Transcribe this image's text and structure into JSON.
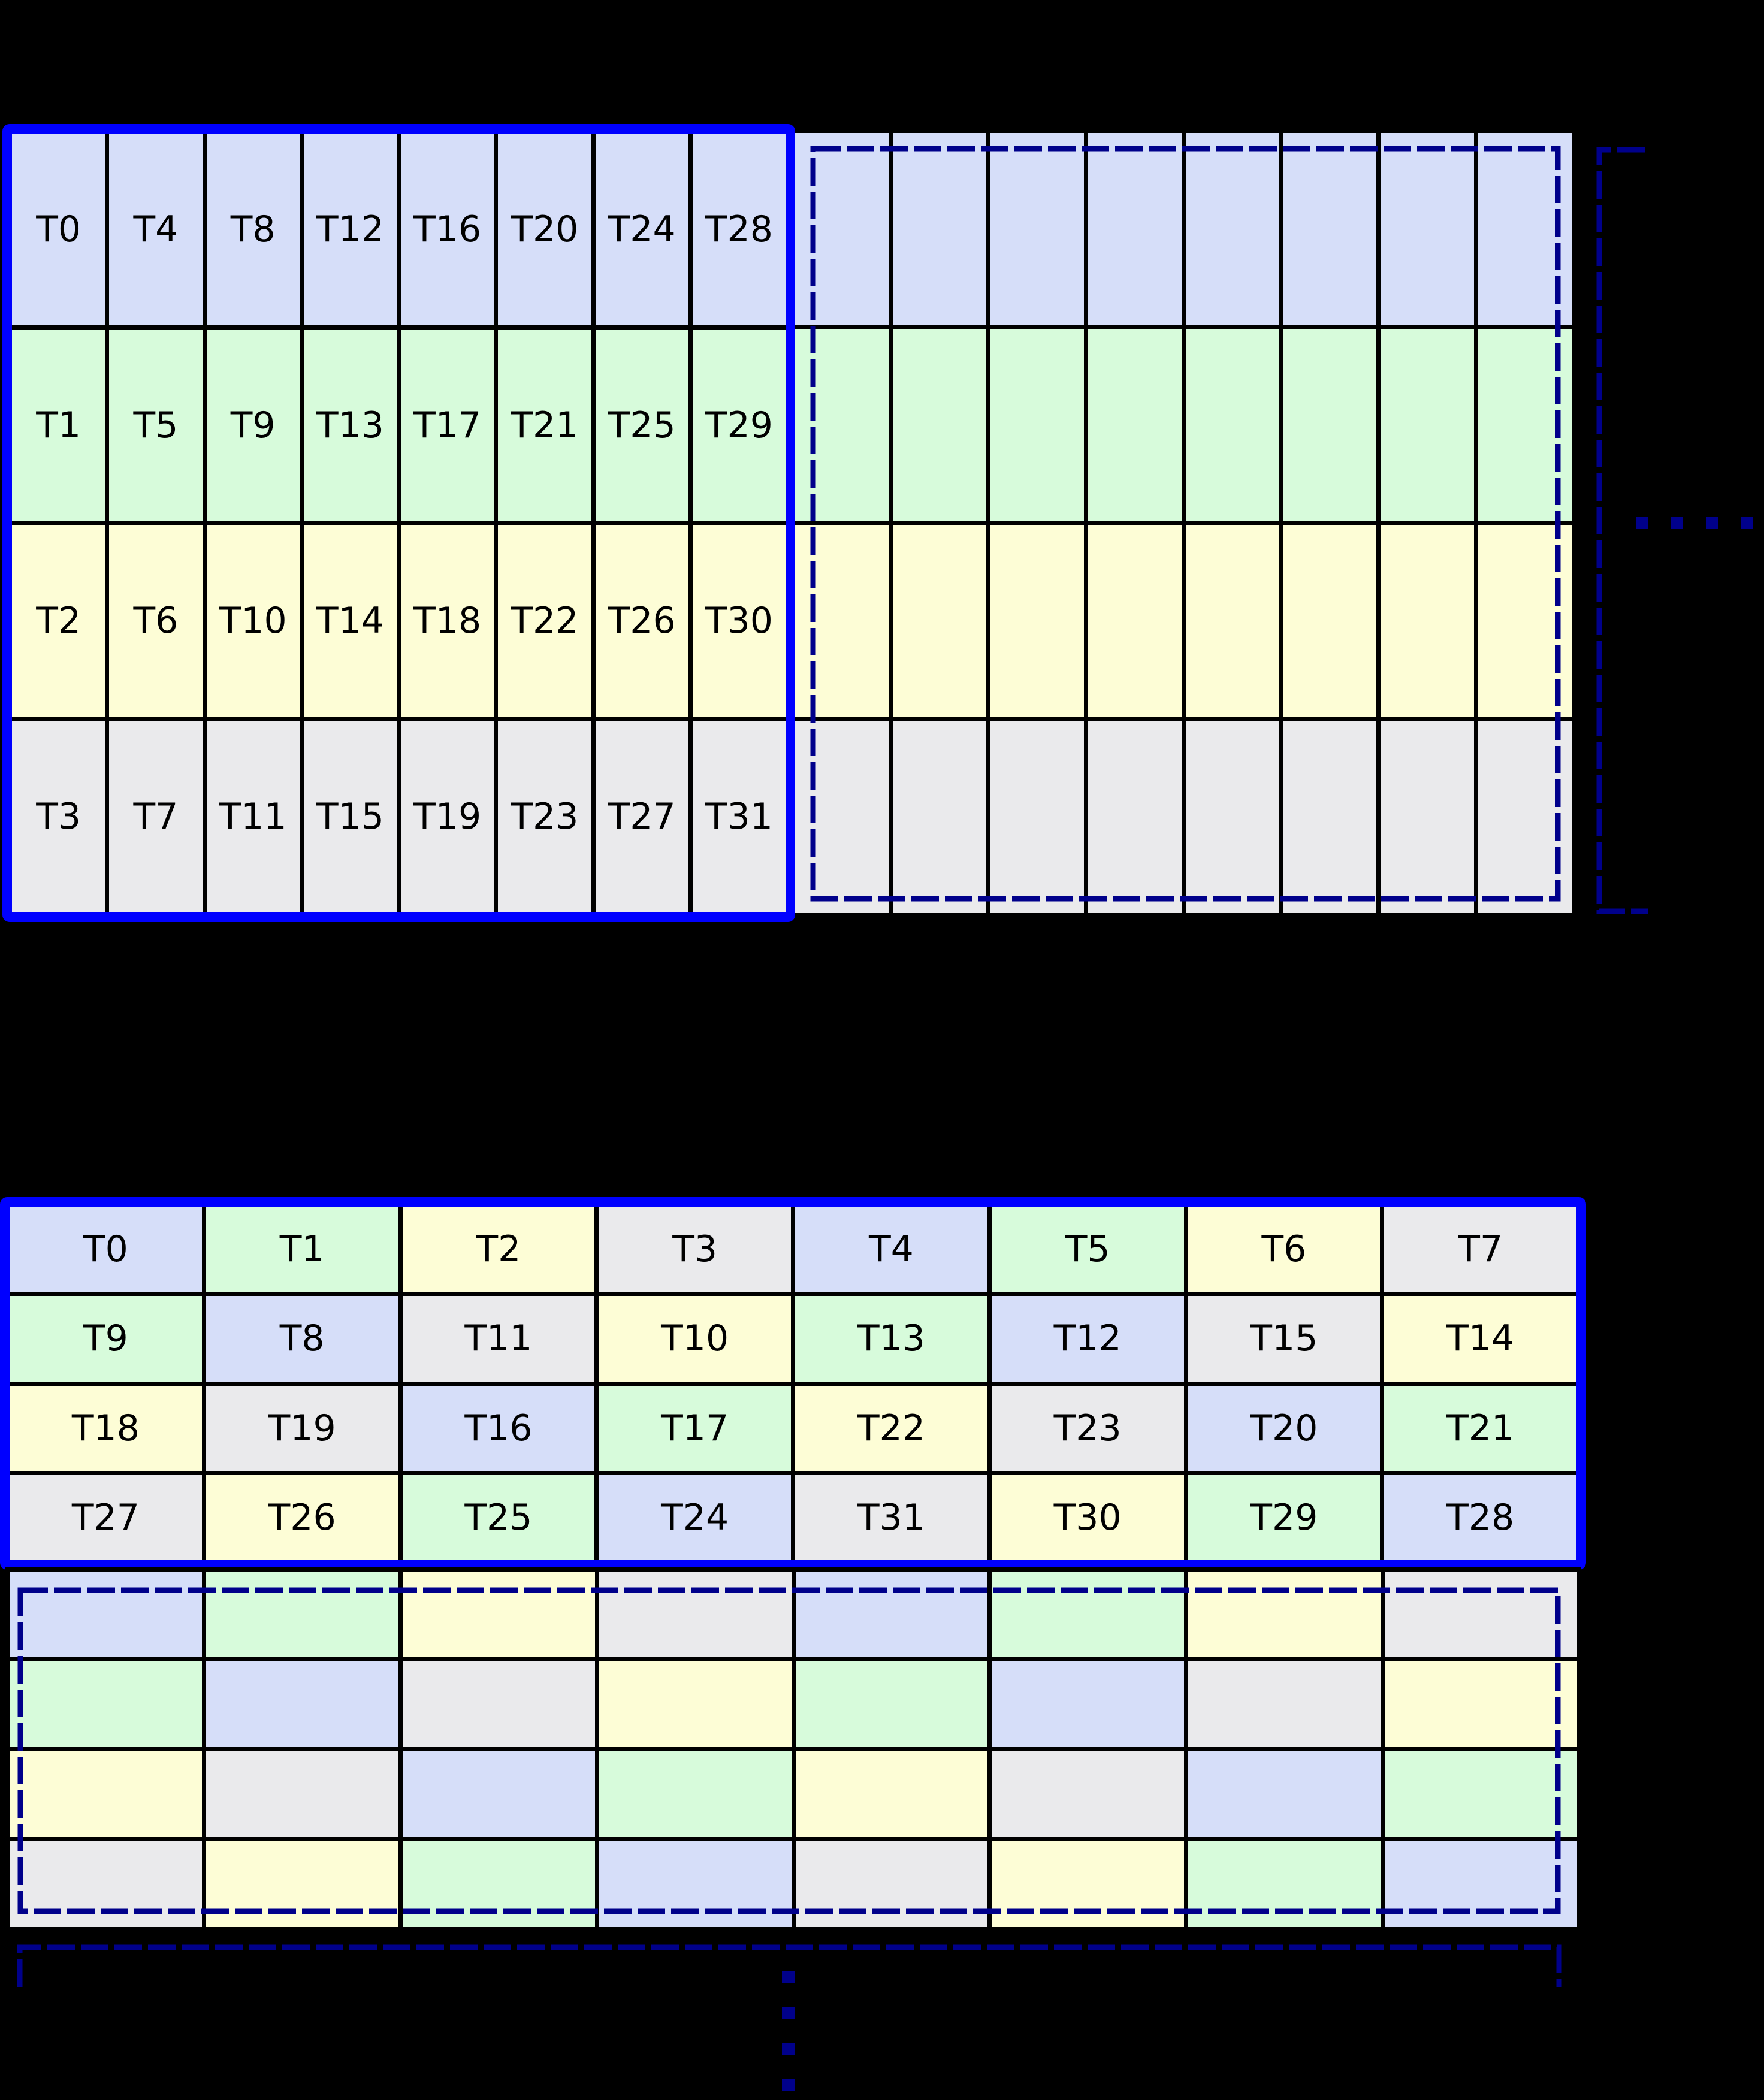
{
  "diagram": {
    "description_labels": [],
    "colors": {
      "background": "#000000",
      "lane_colors": [
        "#d6def9",
        "#d7fbdb",
        "#fdfdd6",
        "#eaeaec"
      ],
      "solid_border": "#0000ff",
      "dashed_border": "#00008b",
      "gridline": "#000000",
      "label_text": "#000000"
    },
    "top_section": {
      "labeled_block_rows": [
        [
          {
            "label": "T0",
            "lane": 0
          },
          {
            "label": "T4",
            "lane": 0
          },
          {
            "label": "T8",
            "lane": 0
          },
          {
            "label": "T12",
            "lane": 0
          },
          {
            "label": "T16",
            "lane": 0
          },
          {
            "label": "T20",
            "lane": 0
          },
          {
            "label": "T24",
            "lane": 0
          },
          {
            "label": "T28",
            "lane": 0
          }
        ],
        [
          {
            "label": "T1",
            "lane": 1
          },
          {
            "label": "T5",
            "lane": 1
          },
          {
            "label": "T9",
            "lane": 1
          },
          {
            "label": "T13",
            "lane": 1
          },
          {
            "label": "T17",
            "lane": 1
          },
          {
            "label": "T21",
            "lane": 1
          },
          {
            "label": "T25",
            "lane": 1
          },
          {
            "label": "T29",
            "lane": 1
          }
        ],
        [
          {
            "label": "T2",
            "lane": 2
          },
          {
            "label": "T6",
            "lane": 2
          },
          {
            "label": "T10",
            "lane": 2
          },
          {
            "label": "T14",
            "lane": 2
          },
          {
            "label": "T18",
            "lane": 2
          },
          {
            "label": "T22",
            "lane": 2
          },
          {
            "label": "T26",
            "lane": 2
          },
          {
            "label": "T30",
            "lane": 2
          }
        ],
        [
          {
            "label": "T3",
            "lane": 3
          },
          {
            "label": "T7",
            "lane": 3
          },
          {
            "label": "T11",
            "lane": 3
          },
          {
            "label": "T15",
            "lane": 3
          },
          {
            "label": "T19",
            "lane": 3
          },
          {
            "label": "T23",
            "lane": 3
          },
          {
            "label": "T27",
            "lane": 3
          },
          {
            "label": "T31",
            "lane": 3
          }
        ]
      ],
      "unlabeled_block_rows": [
        [
          {
            "label": "",
            "lane": 0
          },
          {
            "label": "",
            "lane": 0
          },
          {
            "label": "",
            "lane": 0
          },
          {
            "label": "",
            "lane": 0
          },
          {
            "label": "",
            "lane": 0
          },
          {
            "label": "",
            "lane": 0
          },
          {
            "label": "",
            "lane": 0
          },
          {
            "label": "",
            "lane": 0
          }
        ],
        [
          {
            "label": "",
            "lane": 1
          },
          {
            "label": "",
            "lane": 1
          },
          {
            "label": "",
            "lane": 1
          },
          {
            "label": "",
            "lane": 1
          },
          {
            "label": "",
            "lane": 1
          },
          {
            "label": "",
            "lane": 1
          },
          {
            "label": "",
            "lane": 1
          },
          {
            "label": "",
            "lane": 1
          }
        ],
        [
          {
            "label": "",
            "lane": 2
          },
          {
            "label": "",
            "lane": 2
          },
          {
            "label": "",
            "lane": 2
          },
          {
            "label": "",
            "lane": 2
          },
          {
            "label": "",
            "lane": 2
          },
          {
            "label": "",
            "lane": 2
          },
          {
            "label": "",
            "lane": 2
          },
          {
            "label": "",
            "lane": 2
          }
        ],
        [
          {
            "label": "",
            "lane": 3
          },
          {
            "label": "",
            "lane": 3
          },
          {
            "label": "",
            "lane": 3
          },
          {
            "label": "",
            "lane": 3
          },
          {
            "label": "",
            "lane": 3
          },
          {
            "label": "",
            "lane": 3
          },
          {
            "label": "",
            "lane": 3
          },
          {
            "label": "",
            "lane": 3
          }
        ]
      ]
    },
    "bottom_section": {
      "labeled_block_rows": [
        [
          {
            "label": "T0",
            "lane": 0
          },
          {
            "label": "T1",
            "lane": 1
          },
          {
            "label": "T2",
            "lane": 2
          },
          {
            "label": "T3",
            "lane": 3
          },
          {
            "label": "T4",
            "lane": 0
          },
          {
            "label": "T5",
            "lane": 1
          },
          {
            "label": "T6",
            "lane": 2
          },
          {
            "label": "T7",
            "lane": 3
          }
        ],
        [
          {
            "label": "T9",
            "lane": 1
          },
          {
            "label": "T8",
            "lane": 0
          },
          {
            "label": "T11",
            "lane": 3
          },
          {
            "label": "T10",
            "lane": 2
          },
          {
            "label": "T13",
            "lane": 1
          },
          {
            "label": "T12",
            "lane": 0
          },
          {
            "label": "T15",
            "lane": 3
          },
          {
            "label": "T14",
            "lane": 2
          }
        ],
        [
          {
            "label": "T18",
            "lane": 2
          },
          {
            "label": "T19",
            "lane": 3
          },
          {
            "label": "T16",
            "lane": 0
          },
          {
            "label": "T17",
            "lane": 1
          },
          {
            "label": "T22",
            "lane": 2
          },
          {
            "label": "T23",
            "lane": 3
          },
          {
            "label": "T20",
            "lane": 0
          },
          {
            "label": "T21",
            "lane": 1
          }
        ],
        [
          {
            "label": "T27",
            "lane": 3
          },
          {
            "label": "T26",
            "lane": 2
          },
          {
            "label": "T25",
            "lane": 1
          },
          {
            "label": "T24",
            "lane": 0
          },
          {
            "label": "T31",
            "lane": 3
          },
          {
            "label": "T30",
            "lane": 2
          },
          {
            "label": "T29",
            "lane": 1
          },
          {
            "label": "T28",
            "lane": 0
          }
        ]
      ],
      "unlabeled_block_rows": [
        [
          {
            "label": "",
            "lane": 0
          },
          {
            "label": "",
            "lane": 1
          },
          {
            "label": "",
            "lane": 2
          },
          {
            "label": "",
            "lane": 3
          },
          {
            "label": "",
            "lane": 0
          },
          {
            "label": "",
            "lane": 1
          },
          {
            "label": "",
            "lane": 2
          },
          {
            "label": "",
            "lane": 3
          }
        ],
        [
          {
            "label": "",
            "lane": 1
          },
          {
            "label": "",
            "lane": 0
          },
          {
            "label": "",
            "lane": 3
          },
          {
            "label": "",
            "lane": 2
          },
          {
            "label": "",
            "lane": 1
          },
          {
            "label": "",
            "lane": 0
          },
          {
            "label": "",
            "lane": 3
          },
          {
            "label": "",
            "lane": 2
          }
        ],
        [
          {
            "label": "",
            "lane": 2
          },
          {
            "label": "",
            "lane": 3
          },
          {
            "label": "",
            "lane": 0
          },
          {
            "label": "",
            "lane": 1
          },
          {
            "label": "",
            "lane": 2
          },
          {
            "label": "",
            "lane": 3
          },
          {
            "label": "",
            "lane": 0
          },
          {
            "label": "",
            "lane": 1
          }
        ],
        [
          {
            "label": "",
            "lane": 3
          },
          {
            "label": "",
            "lane": 2
          },
          {
            "label": "",
            "lane": 1
          },
          {
            "label": "",
            "lane": 0
          },
          {
            "label": "",
            "lane": 3
          },
          {
            "label": "",
            "lane": 2
          },
          {
            "label": "",
            "lane": 1
          },
          {
            "label": "",
            "lane": 0
          }
        ]
      ]
    }
  }
}
